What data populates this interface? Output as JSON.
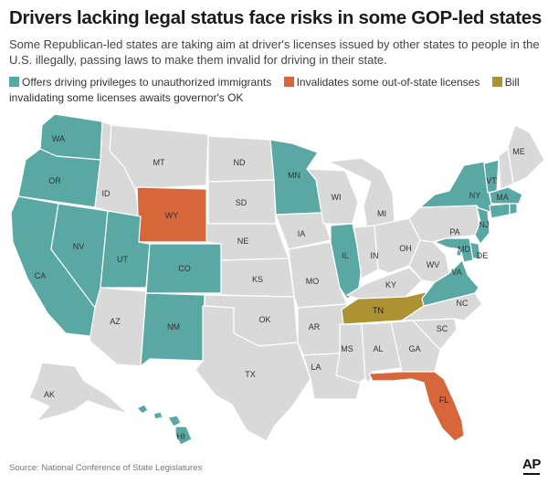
{
  "title": "Drivers lacking legal status face risks in some GOP-led states",
  "subtitle": "Some Republican-led states are taking aim at driver's licenses issued by other states to people in the U.S. illegally, passing laws to make them invalid for driving in their state.",
  "legend": [
    {
      "label": "Offers driving privileges to unauthorized immigrants",
      "color": "#5aa8a4"
    },
    {
      "label": "Invalidates some out-of-state licenses",
      "color": "#d8663b"
    },
    {
      "label": "Bill invalidating some licenses awaits governor's OK",
      "color": "#ad9231"
    }
  ],
  "colors": {
    "offers": "#5aa8a4",
    "invalidates": "#d8663b",
    "pending": "#ad9231",
    "other": "#d9d9d9",
    "border": "#ffffff"
  },
  "states": {
    "WA": "offers",
    "OR": "offers",
    "CA": "offers",
    "NV": "offers",
    "UT": "offers",
    "CO": "offers",
    "NM": "offers",
    "MN": "offers",
    "IL": "offers",
    "NY": "offers",
    "VT": "offers",
    "MA": "offers",
    "NJ": "offers",
    "DE": "offers",
    "MD": "offers",
    "VA": "offers",
    "HI": "offers",
    "CT": "offers",
    "RI": "offers",
    "DC": "offers",
    "WY": "invalidates",
    "FL": "invalidates",
    "TN": "pending",
    "MT": "other",
    "ID": "other",
    "ND": "other",
    "SD": "other",
    "NE": "other",
    "KS": "other",
    "OK": "other",
    "TX": "other",
    "AZ": "other",
    "IA": "other",
    "MO": "other",
    "AR": "other",
    "LA": "other",
    "WI": "other",
    "MI": "other",
    "IN": "other",
    "OH": "other",
    "KY": "other",
    "MS": "other",
    "AL": "other",
    "GA": "other",
    "SC": "other",
    "NC": "other",
    "WV": "other",
    "PA": "other",
    "ME": "other",
    "NH": "other",
    "AK": "other"
  },
  "labels": [
    "WA",
    "OR",
    "CA",
    "NV",
    "ID",
    "MT",
    "WY",
    "UT",
    "CO",
    "AZ",
    "NM",
    "ND",
    "SD",
    "NE",
    "KS",
    "OK",
    "TX",
    "MN",
    "IA",
    "MO",
    "AR",
    "LA",
    "WI",
    "IL",
    "MI",
    "IN",
    "OH",
    "KY",
    "TN",
    "MS",
    "AL",
    "GA",
    "FL",
    "SC",
    "NC",
    "VA",
    "WV",
    "PA",
    "NY",
    "VT",
    "ME",
    "MA",
    "NJ",
    "MD",
    "DE",
    "AK",
    "HI"
  ],
  "source": "Source: National Conference of State Legislatures",
  "credit": "AP"
}
